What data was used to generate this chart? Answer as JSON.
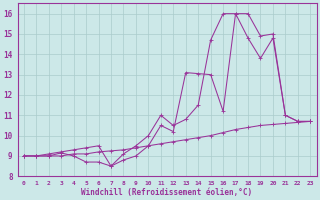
{
  "xlabel": "Windchill (Refroidissement éolien,°C)",
  "xlim": [
    -0.5,
    23.5
  ],
  "ylim": [
    8,
    16.5
  ],
  "xticks": [
    0,
    1,
    2,
    3,
    4,
    5,
    6,
    7,
    8,
    9,
    10,
    11,
    12,
    13,
    14,
    15,
    16,
    17,
    18,
    19,
    20,
    21,
    22,
    23
  ],
  "yticks": [
    8,
    9,
    10,
    11,
    12,
    13,
    14,
    15,
    16
  ],
  "bg_color": "#cce8e8",
  "line_color": "#993399",
  "grid_color": "#aacccc",
  "line1_x": [
    0,
    1,
    2,
    3,
    4,
    5,
    6,
    7,
    8,
    9,
    10,
    11,
    12,
    13,
    14,
    15,
    16,
    17,
    18,
    19,
    20,
    21,
    22,
    23
  ],
  "line1_y": [
    9.0,
    9.0,
    9.0,
    9.15,
    9.0,
    8.7,
    8.7,
    8.5,
    8.8,
    9.0,
    9.5,
    10.5,
    10.2,
    13.1,
    13.05,
    13.0,
    11.2,
    16.0,
    16.0,
    14.9,
    15.0,
    11.0,
    10.7,
    10.7
  ],
  "line2_x": [
    0,
    1,
    2,
    3,
    4,
    5,
    6,
    7,
    8,
    9,
    10,
    11,
    12,
    13,
    14,
    15,
    16,
    17,
    18,
    19,
    20,
    21,
    22,
    23
  ],
  "line2_y": [
    9.0,
    9.0,
    9.1,
    9.2,
    9.3,
    9.4,
    9.5,
    8.5,
    9.1,
    9.5,
    10.0,
    11.0,
    10.5,
    10.8,
    11.5,
    14.7,
    16.0,
    16.0,
    14.8,
    13.8,
    14.8,
    11.0,
    10.7,
    10.7
  ],
  "line3_x": [
    0,
    1,
    2,
    3,
    4,
    5,
    6,
    7,
    8,
    9,
    10,
    11,
    12,
    13,
    14,
    15,
    16,
    17,
    18,
    19,
    20,
    21,
    22,
    23
  ],
  "line3_y": [
    9.0,
    9.0,
    9.0,
    9.0,
    9.1,
    9.1,
    9.2,
    9.25,
    9.3,
    9.4,
    9.5,
    9.6,
    9.7,
    9.8,
    9.9,
    10.0,
    10.15,
    10.3,
    10.4,
    10.5,
    10.55,
    10.6,
    10.65,
    10.7
  ]
}
